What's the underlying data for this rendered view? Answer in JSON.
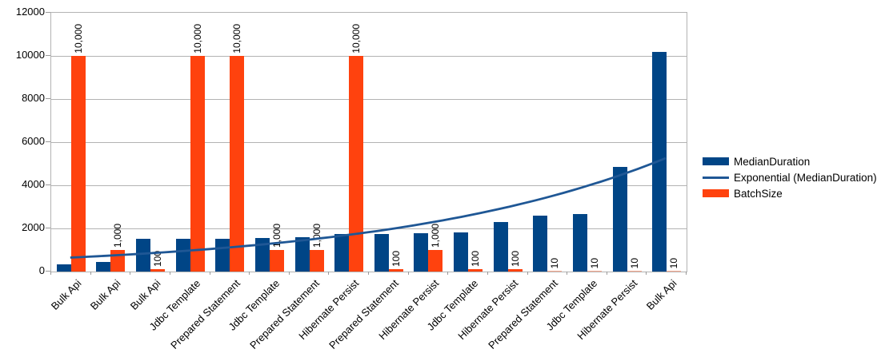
{
  "chart_data": {
    "type": "bar",
    "title": "",
    "xlabel": "",
    "ylabel": "",
    "ylim": [
      0,
      12000
    ],
    "yticks": [
      0,
      2000,
      4000,
      6000,
      8000,
      10000,
      12000
    ],
    "grid": true,
    "legend_position": "right",
    "categories": [
      "Bulk Api",
      "Bulk Api",
      "Bulk Api",
      "Jdbc Template",
      "Prepared Statement",
      "Jdbc Template",
      "Prepared Statement",
      "Hibernate Persist",
      "Prepared Statement",
      "Hibernate Persist",
      "Jdbc Template",
      "Hibernate Persist",
      "Prepared Statement",
      "Jdbc Template",
      "Hibernate Persist",
      "Bulk Api"
    ],
    "series": [
      {
        "name": "MedianDuration",
        "type": "bar",
        "color": "#004586",
        "values": [
          350,
          450,
          1500,
          1500,
          1525,
          1550,
          1575,
          1725,
          1750,
          1775,
          1800,
          2300,
          2600,
          2650,
          4850,
          10200
        ]
      },
      {
        "name": "BatchSize",
        "type": "bar",
        "color": "#FF420E",
        "small_value_color": "#FFAB91",
        "values": [
          10000,
          1000,
          100,
          10000,
          10000,
          1000,
          1000,
          10000,
          100,
          1000,
          100,
          100,
          10,
          10,
          10,
          10
        ],
        "data_labels": [
          "10,000",
          "1,000",
          "100",
          "10,000",
          "10,000",
          "1,000",
          "1,000",
          "10,000",
          "100",
          "1,000",
          "100",
          "100",
          "10",
          "10",
          "10",
          "10"
        ]
      }
    ],
    "trendline": {
      "name": "Exponential (MedianDuration)",
      "color": "#1F5795",
      "start_value": 610,
      "end_value": 5225
    }
  },
  "legend": {
    "items": [
      {
        "label": "MedianDuration",
        "swatch": "bar"
      },
      {
        "label": "Exponential (MedianDuration)",
        "swatch": "line"
      },
      {
        "label": "BatchSize",
        "swatch": "bar"
      }
    ]
  }
}
